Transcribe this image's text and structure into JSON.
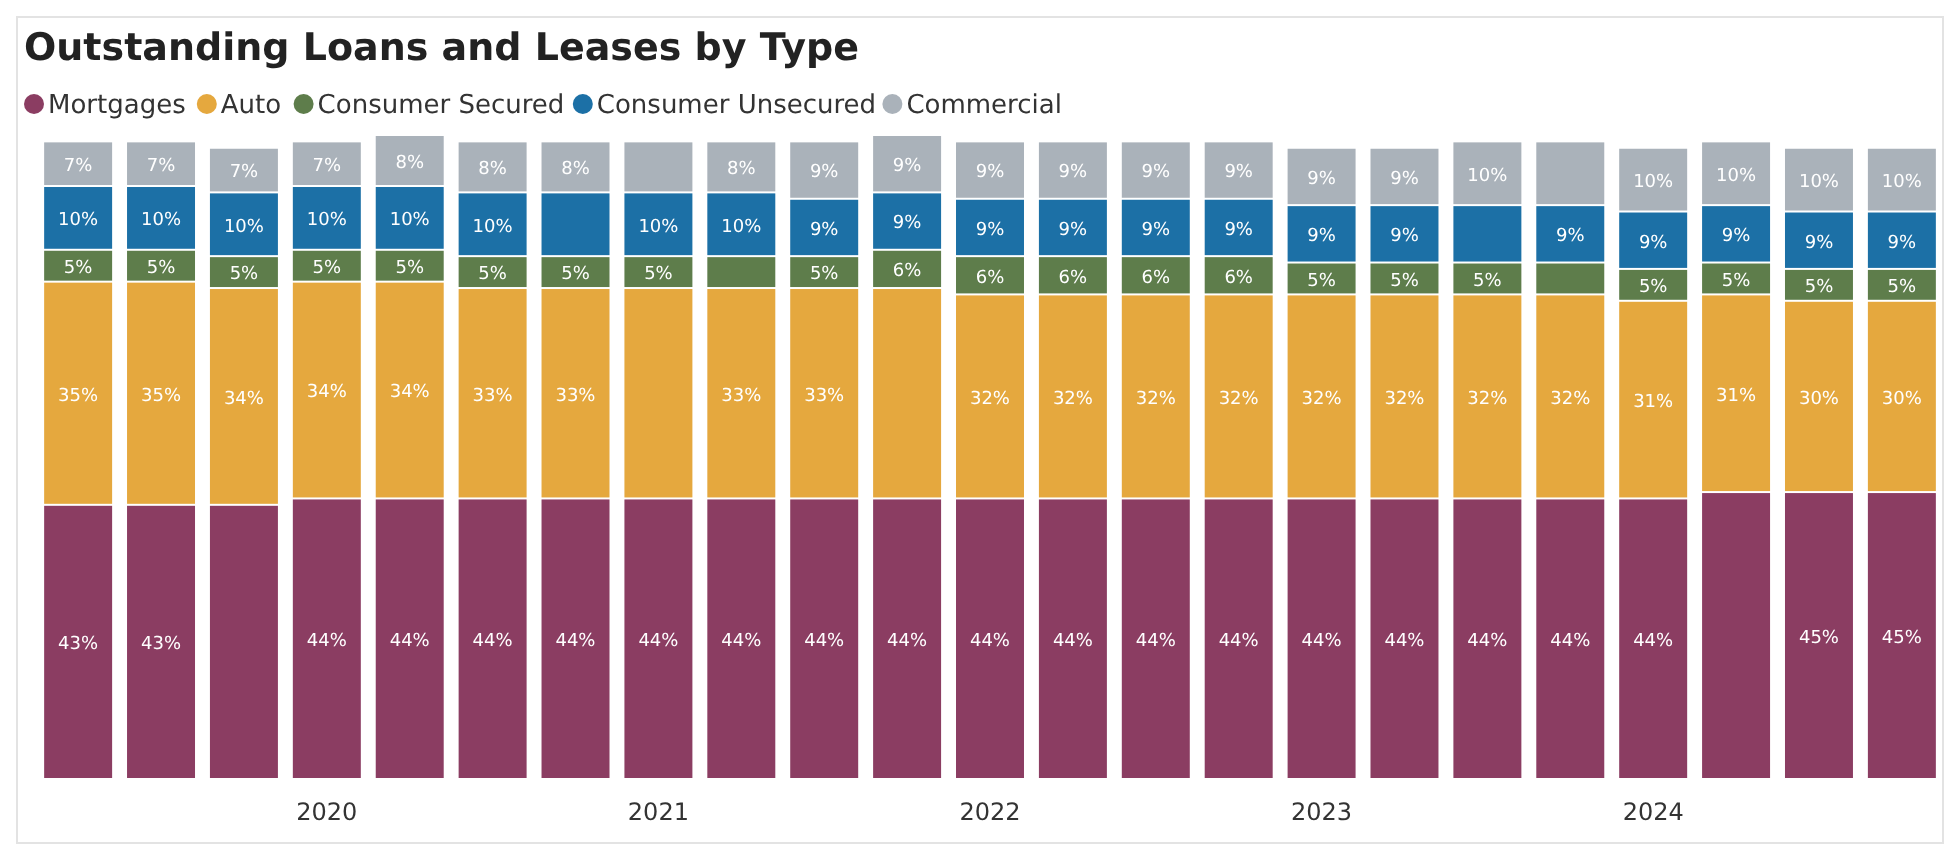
{
  "chart_data": {
    "type": "bar",
    "title": "Outstanding Loans and Leases by Type",
    "stacked": true,
    "legend": "top left",
    "tick_labels": "x",
    "ylim": [
      0,
      101
    ],
    "categories": [
      null,
      null,
      null,
      "2020",
      null,
      null,
      null,
      "2021",
      null,
      null,
      null,
      "2022",
      null,
      null,
      null,
      "2023",
      null,
      null,
      null,
      "2024",
      null,
      null,
      null
    ],
    "series": [
      {
        "name": "Mortgages",
        "color": "#8b3d62",
        "values": [
          43,
          43,
          43,
          44,
          44,
          44,
          44,
          44,
          44,
          44,
          44,
          44,
          44,
          44,
          44,
          44,
          44,
          44,
          44,
          44,
          45,
          45,
          45
        ],
        "value_labels": [
          "43%",
          "43%",
          null,
          "44%",
          "44%",
          "44%",
          "44%",
          "44%",
          "44%",
          "44%",
          "44%",
          "44%",
          "44%",
          "44%",
          "44%",
          "44%",
          "44%",
          "44%",
          "44%",
          "44%",
          null,
          "45%",
          "45%"
        ]
      },
      {
        "name": "Auto",
        "color": "#e5a83e",
        "values": [
          35,
          35,
          34,
          34,
          34,
          33,
          33,
          33,
          33,
          33,
          33,
          32,
          32,
          32,
          32,
          32,
          32,
          32,
          32,
          31,
          31,
          30,
          30
        ],
        "value_labels": [
          "35%",
          "35%",
          "34%",
          "34%",
          "34%",
          "33%",
          "33%",
          null,
          "33%",
          "33%",
          null,
          "32%",
          "32%",
          "32%",
          "32%",
          "32%",
          "32%",
          "32%",
          "32%",
          "31%",
          "31%",
          "30%",
          "30%"
        ]
      },
      {
        "name": "Consumer Secured",
        "color": "#5e7d4b",
        "values": [
          5,
          5,
          5,
          5,
          5,
          5,
          5,
          5,
          5,
          5,
          6,
          6,
          6,
          6,
          6,
          5,
          5,
          5,
          5,
          5,
          5,
          5,
          5
        ],
        "value_labels": [
          "5%",
          "5%",
          "5%",
          "5%",
          "5%",
          "5%",
          "5%",
          "5%",
          null,
          "5%",
          "6%",
          "6%",
          "6%",
          "6%",
          "6%",
          "5%",
          "5%",
          "5%",
          null,
          "5%",
          "5%",
          "5%",
          "5%"
        ]
      },
      {
        "name": "Consumer Unsecured",
        "color": "#1c70a6",
        "values": [
          10,
          10,
          10,
          10,
          10,
          10,
          10,
          10,
          10,
          9,
          9,
          9,
          9,
          9,
          9,
          9,
          9,
          9,
          9,
          9,
          9,
          9,
          9
        ],
        "value_labels": [
          "10%",
          "10%",
          "10%",
          "10%",
          "10%",
          "10%",
          null,
          "10%",
          "10%",
          "9%",
          "9%",
          "9%",
          "9%",
          "9%",
          "9%",
          "9%",
          "9%",
          null,
          "9%",
          "9%",
          "9%",
          "9%",
          "9%"
        ]
      },
      {
        "name": "Commercial",
        "color": "#aab2ba",
        "values": [
          7,
          7,
          7,
          7,
          8,
          8,
          8,
          8,
          8,
          9,
          9,
          9,
          9,
          9,
          9,
          9,
          9,
          10,
          10,
          10,
          10,
          10,
          10
        ],
        "value_labels": [
          "7%",
          "7%",
          "7%",
          "7%",
          "8%",
          "8%",
          "8%",
          null,
          "8%",
          "9%",
          "9%",
          "9%",
          "9%",
          "9%",
          "9%",
          "9%",
          "9%",
          "10%",
          null,
          "10%",
          "10%",
          "10%",
          "10%"
        ]
      }
    ]
  }
}
